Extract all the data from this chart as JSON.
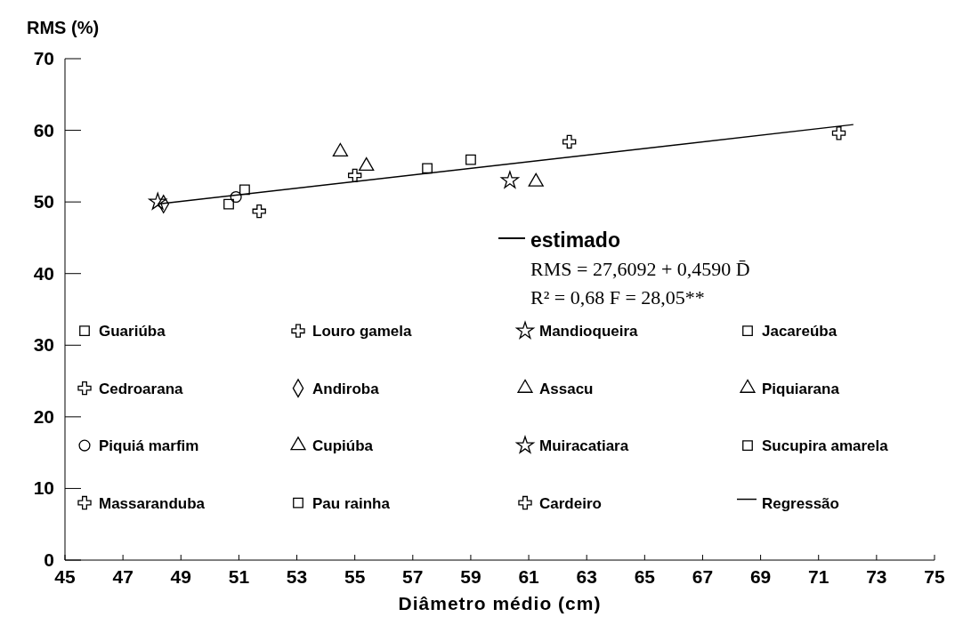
{
  "chart_data": {
    "type": "scatter",
    "xlabel": "Diâmetro médio (cm)",
    "ylabel": "RMS (%)",
    "xlim": [
      45,
      75
    ],
    "xticks": [
      45,
      47,
      49,
      51,
      53,
      55,
      57,
      59,
      61,
      63,
      65,
      67,
      69,
      71,
      73,
      75
    ],
    "ylim": [
      0,
      70
    ],
    "yticks": [
      0,
      10,
      20,
      30,
      40,
      50,
      60,
      70
    ],
    "grid": false,
    "legend": "bottom",
    "annotations": [
      "estimado",
      "RMS = 27,6092 + 0,4590 D̄",
      "R² = 0,68    F = 28,05**"
    ],
    "series": [
      {
        "name": "Guariúba",
        "color": "#000000",
        "marker": "square",
        "x": [
          51.2
        ],
        "values": [
          51.7
        ]
      },
      {
        "name": "Louro gamela",
        "color": "#000000",
        "marker": "cross",
        "x": [
          62.4
        ],
        "values": [
          58.4
        ]
      },
      {
        "name": "Mandioqueira",
        "color": "#000000",
        "marker": "star",
        "x": [
          60.35
        ],
        "values": [
          53.0
        ]
      },
      {
        "name": "Jacareúba",
        "color": "#000000",
        "marker": "square",
        "x": [
          57.5
        ],
        "values": [
          54.7
        ]
      },
      {
        "name": "Cedroarana",
        "color": "#000000",
        "marker": "cross",
        "x": [
          71.7
        ],
        "values": [
          59.6
        ]
      },
      {
        "name": "Andiroba",
        "color": "#000000",
        "marker": "diamond",
        "x": [
          48.4
        ],
        "values": [
          49.7
        ]
      },
      {
        "name": "Assacu",
        "color": "#000000",
        "marker": "triangle",
        "x": [
          54.5
        ],
        "values": [
          57.0
        ]
      },
      {
        "name": "Piquiarana",
        "color": "#000000",
        "marker": "triangle",
        "x": [
          61.25
        ],
        "values": [
          52.8
        ]
      },
      {
        "name": "Piquiá marfim",
        "color": "#000000",
        "marker": "circle",
        "x": [
          50.9
        ],
        "values": [
          50.7
        ]
      },
      {
        "name": "Cupiúba",
        "color": "#000000",
        "marker": "triangle",
        "x": [
          55.4
        ],
        "values": [
          55.0
        ]
      },
      {
        "name": "Muiracatiara",
        "color": "#000000",
        "marker": "star",
        "x": [
          48.2
        ],
        "values": [
          50.0
        ]
      },
      {
        "name": "Sucupira amarela",
        "color": "#000000",
        "marker": "square",
        "x": [
          50.65
        ],
        "values": [
          49.7
        ]
      },
      {
        "name": "Massaranduba",
        "color": "#000000",
        "marker": "cross",
        "x": [
          55.0
        ],
        "values": [
          53.7
        ]
      },
      {
        "name": "Pau rainha",
        "color": "#000000",
        "marker": "square",
        "x": [
          59.0
        ],
        "values": [
          55.9
        ]
      },
      {
        "name": "Cardeiro",
        "color": "#000000",
        "marker": "cross",
        "x": [
          51.7
        ],
        "values": [
          48.7
        ]
      },
      {
        "name": "Regressão",
        "color": "#000000",
        "type": "line",
        "marker": "none",
        "line_style": "solid",
        "x": [
          48.2,
          72.2
        ],
        "values": [
          49.7,
          60.8
        ]
      }
    ]
  }
}
